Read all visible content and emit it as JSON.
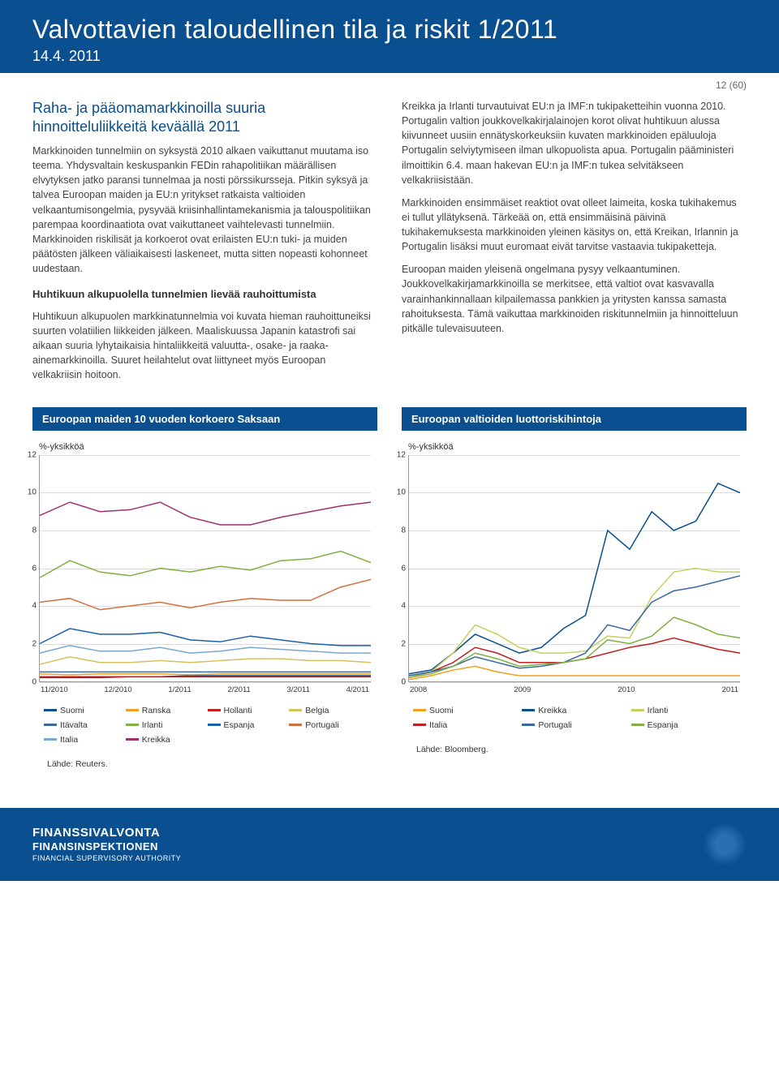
{
  "header": {
    "title": "Valvottavien taloudellinen tila ja riskit 1/2011",
    "date": "14.4. 2011"
  },
  "page_num": "12 (60)",
  "left": {
    "heading": "Raha- ja pääomamarkkinoilla suuria hinnoitteluliikkeitä keväällä 2011",
    "p1": "Markkinoiden tunnelmiin on syksystä 2010 alkaen vaikuttanut muutama iso teema. Yhdysvaltain keskuspankin FEDin rahapolitiikan määrällisen elvytyksen jatko paransi tunnelmaa ja nosti pörssikursseja. Pitkin syksyä ja talvea Euroopan maiden ja EU:n yritykset ratkaista valtioiden velkaantumisongelmia, pysyvää kriisinhallintamekanismia ja talouspolitiikan parempaa koordinaatiota ovat vaikuttaneet vaihtelevasti tunnelmiin. Markkinoiden riskilisät ja korkoerot ovat erilaisten EU:n tuki- ja muiden päätösten jälkeen väliaikaisesti laskeneet, mutta sitten nopeasti kohonneet uudestaan.",
    "sub1": "Huhtikuun alkupuolella tunnelmien lievää rauhoittumista",
    "p2": "Huhtikuun alkupuolen markkinatunnelmia voi kuvata hieman rauhoittuneiksi suurten volatiilien liikkeiden jälkeen. Maaliskuussa Japanin katastrofi sai aikaan suuria lyhytaikaisia hintaliikkeitä valuutta-, osake- ja raaka-ainemarkkinoilla. Suuret heilahtelut ovat liittyneet myös Euroopan velkakriisin hoitoon."
  },
  "right": {
    "p1": "Kreikka ja Irlanti turvautuivat EU:n ja IMF:n tukipaketteihin vuonna 2010. Portugalin valtion joukkovelkakirjalainojen korot olivat huhtikuun alussa kiivunneet uusiin ennätyskorkeuksiin kuvaten markkinoiden epäluuloja Portugalin selviytymiseen ilman ulkopuolista apua. Portugalin pääministeri ilmoittikin 6.4. maan hakevan EU:n ja IMF:n tukea selvitäkseen velkakriisistään.",
    "p2": "Markkinoiden ensimmäiset reaktiot ovat olleet laimeita, koska tukihakemus ei tullut yllätyksenä. Tärkeää on, että ensimmäisinä päivinä tukihakemuksesta markkinoiden yleinen käsitys on, että Kreikan, Irlannin ja Portugalin lisäksi muut euromaat eivät tarvitse vastaavia tukipaketteja.",
    "p3": "Euroopan maiden yleisenä ongelmana pysyy velkaantuminen. Joukkovelkakirjamarkkinoilla se merkitsee, että valtiot ovat kasvavalla varainhankinnallaan kilpailemassa pankkien ja yritysten kanssa samasta rahoituksesta. Tämä vaikuttaa markkinoiden riskitunnelmiin ja hinnoitteluun pitkälle tulevaisuuteen."
  },
  "chart1": {
    "title": "Euroopan maiden 10 vuoden korkoero Saksaan",
    "ylabel": "%-yksikköä",
    "ylim": [
      0,
      12
    ],
    "yticks": [
      0,
      2,
      4,
      6,
      8,
      10,
      12
    ],
    "xlabels": [
      "11/2010",
      "12/2010",
      "1/2011",
      "2/2011",
      "3/2011",
      "4/2011"
    ],
    "series": [
      {
        "name": "Suomi",
        "color": "#0a4f8f",
        "data": [
          0.2,
          0.2,
          0.2,
          0.25,
          0.25,
          0.3,
          0.3,
          0.3,
          0.3,
          0.3,
          0.3,
          0.3
        ]
      },
      {
        "name": "Ranska",
        "color": "#f0a020",
        "data": [
          0.4,
          0.35,
          0.4,
          0.4,
          0.4,
          0.35,
          0.4,
          0.4,
          0.4,
          0.4,
          0.4,
          0.4
        ]
      },
      {
        "name": "Hollanti",
        "color": "#c02020",
        "data": [
          0.25,
          0.25,
          0.25,
          0.25,
          0.25,
          0.25,
          0.25,
          0.25,
          0.25,
          0.25,
          0.25,
          0.25
        ]
      },
      {
        "name": "Belgia",
        "color": "#d4c060",
        "data": [
          0.9,
          1.3,
          1.0,
          1.0,
          1.1,
          1.0,
          1.1,
          1.2,
          1.2,
          1.1,
          1.1,
          1.0
        ]
      },
      {
        "name": "Itävalta",
        "color": "#3a6aa0",
        "data": [
          0.5,
          0.5,
          0.5,
          0.5,
          0.5,
          0.5,
          0.5,
          0.5,
          0.5,
          0.5,
          0.5,
          0.5
        ]
      },
      {
        "name": "Irlanti",
        "color": "#7fb040",
        "data": [
          5.5,
          6.4,
          5.8,
          5.6,
          6.0,
          5.8,
          6.1,
          5.9,
          6.4,
          6.5,
          6.9,
          6.3
        ]
      },
      {
        "name": "Espanja",
        "color": "#1a60b0",
        "data": [
          2.0,
          2.8,
          2.5,
          2.5,
          2.6,
          2.2,
          2.1,
          2.4,
          2.2,
          2.0,
          1.9,
          1.9
        ]
      },
      {
        "name": "Portugali",
        "color": "#d47040",
        "data": [
          4.2,
          4.4,
          3.8,
          4.0,
          4.2,
          3.9,
          4.2,
          4.4,
          4.3,
          4.3,
          5.0,
          5.4
        ]
      },
      {
        "name": "Italia",
        "color": "#7aa8d0",
        "data": [
          1.5,
          1.9,
          1.6,
          1.6,
          1.8,
          1.5,
          1.6,
          1.8,
          1.7,
          1.6,
          1.5,
          1.5
        ]
      },
      {
        "name": "Kreikka",
        "color": "#a03070",
        "data": [
          8.8,
          9.5,
          9.0,
          9.1,
          9.5,
          8.7,
          8.3,
          8.3,
          8.7,
          9.0,
          9.3,
          9.5
        ]
      }
    ],
    "source": "Lähde: Reuters."
  },
  "chart2": {
    "title": "Euroopan valtioiden luottoriskihintoja",
    "ylabel": "%-yksikköä",
    "ylim": [
      0,
      12
    ],
    "yticks": [
      0,
      2,
      4,
      6,
      8,
      10,
      12
    ],
    "xlabels": [
      "2008",
      "2009",
      "2010",
      "2011"
    ],
    "series": [
      {
        "name": "Suomi",
        "color": "#f0a020",
        "data": [
          0.1,
          0.3,
          0.6,
          0.8,
          0.5,
          0.3,
          0.3,
          0.3,
          0.3,
          0.3,
          0.3,
          0.3,
          0.3,
          0.3,
          0.3,
          0.3
        ]
      },
      {
        "name": "Kreikka",
        "color": "#0a4f8f",
        "data": [
          0.4,
          0.6,
          1.5,
          2.5,
          2.0,
          1.5,
          1.8,
          2.8,
          3.5,
          8.0,
          7.0,
          9.0,
          8.0,
          8.5,
          10.5,
          10.0
        ]
      },
      {
        "name": "Irlanti",
        "color": "#c5d060",
        "data": [
          0.2,
          0.5,
          1.5,
          3.0,
          2.5,
          1.8,
          1.5,
          1.5,
          1.6,
          2.4,
          2.3,
          4.5,
          5.8,
          6.0,
          5.8,
          5.8
        ]
      },
      {
        "name": "Italia",
        "color": "#c02020",
        "data": [
          0.3,
          0.5,
          1.0,
          1.8,
          1.5,
          1.0,
          1.0,
          1.0,
          1.2,
          1.5,
          1.8,
          2.0,
          2.3,
          2.0,
          1.7,
          1.5
        ]
      },
      {
        "name": "Portugali",
        "color": "#3a6aa0",
        "data": [
          0.3,
          0.5,
          0.8,
          1.3,
          1.0,
          0.7,
          0.8,
          1.0,
          1.5,
          3.0,
          2.7,
          4.2,
          4.8,
          5.0,
          5.3,
          5.6
        ]
      },
      {
        "name": "Espanja",
        "color": "#7fb040",
        "data": [
          0.2,
          0.4,
          0.8,
          1.5,
          1.2,
          0.8,
          0.9,
          1.0,
          1.2,
          2.2,
          2.0,
          2.4,
          3.4,
          3.0,
          2.5,
          2.3
        ]
      }
    ],
    "source": "Lähde: Bloomberg."
  },
  "footer": {
    "l1": "FINANSSIVALVONTA",
    "l2": "FINANSINSPEKTIONEN",
    "l3": "FINANCIAL SUPERVISORY AUTHORITY"
  }
}
